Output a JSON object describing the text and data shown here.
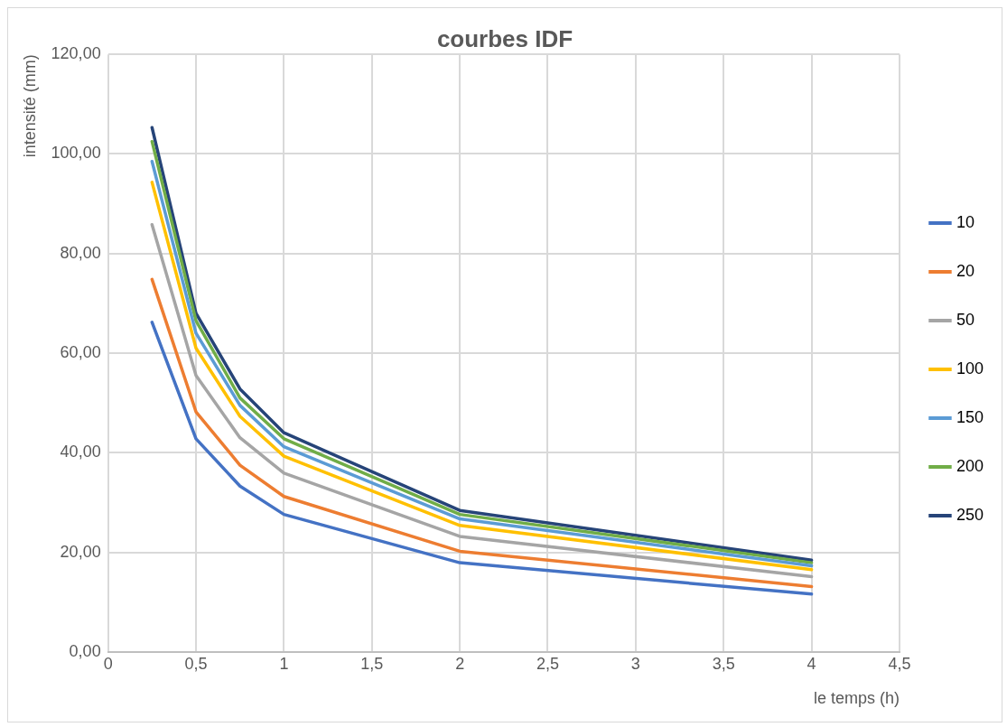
{
  "chart_data": {
    "type": "line",
    "title": "courbes IDF",
    "xlabel": "le temps (h)",
    "ylabel": "intensité (mm)",
    "x": [
      0.25,
      0.5,
      0.75,
      1,
      2,
      4
    ],
    "series": [
      {
        "name": "10",
        "color": "#4472c4",
        "values": [
          66.2,
          42.8,
          33.3,
          27.6,
          17.9,
          11.6
        ]
      },
      {
        "name": "20",
        "color": "#ed7d31",
        "values": [
          74.8,
          48.2,
          37.5,
          31.2,
          20.2,
          13.1
        ]
      },
      {
        "name": "50",
        "color": "#a5a5a5",
        "values": [
          85.8,
          55.5,
          43,
          35.9,
          23.2,
          15.1
        ]
      },
      {
        "name": "100",
        "color": "#ffc000",
        "values": [
          94.3,
          61,
          47.3,
          39.3,
          25.4,
          16.5
        ]
      },
      {
        "name": "150",
        "color": "#5b9bd5",
        "values": [
          98.5,
          64,
          49.5,
          41.2,
          26.7,
          17.3
        ]
      },
      {
        "name": "200",
        "color": "#70ad47",
        "values": [
          102.5,
          66.5,
          51,
          42.8,
          27.6,
          17.9
        ]
      },
      {
        "name": "250",
        "color": "#264478",
        "values": [
          105.3,
          68,
          52.8,
          44,
          28.4,
          18.4
        ]
      }
    ],
    "xlim": [
      0,
      4.5
    ],
    "xticks": [
      0,
      {
        "value": 0.5,
        "label": "0,5"
      },
      1,
      {
        "value": 1.5,
        "label": "1,5"
      },
      2,
      {
        "value": 2.5,
        "label": "2,5"
      },
      3,
      {
        "value": 3.5,
        "label": "3,5"
      },
      4,
      {
        "value": 4.5,
        "label": "4,5"
      }
    ],
    "ylim": [
      0,
      120
    ],
    "yticks": [
      {
        "value": 0,
        "label": "0,00"
      },
      {
        "value": 20,
        "label": "20,00"
      },
      {
        "value": 40,
        "label": "40,00"
      },
      {
        "value": 60,
        "label": "60,00"
      },
      {
        "value": 80,
        "label": "80,00"
      },
      {
        "value": 100,
        "label": "100,00"
      },
      {
        "value": 120,
        "label": "120,00"
      }
    ],
    "grid": true,
    "legend": "right",
    "marker": "none",
    "line_style": "solid"
  }
}
